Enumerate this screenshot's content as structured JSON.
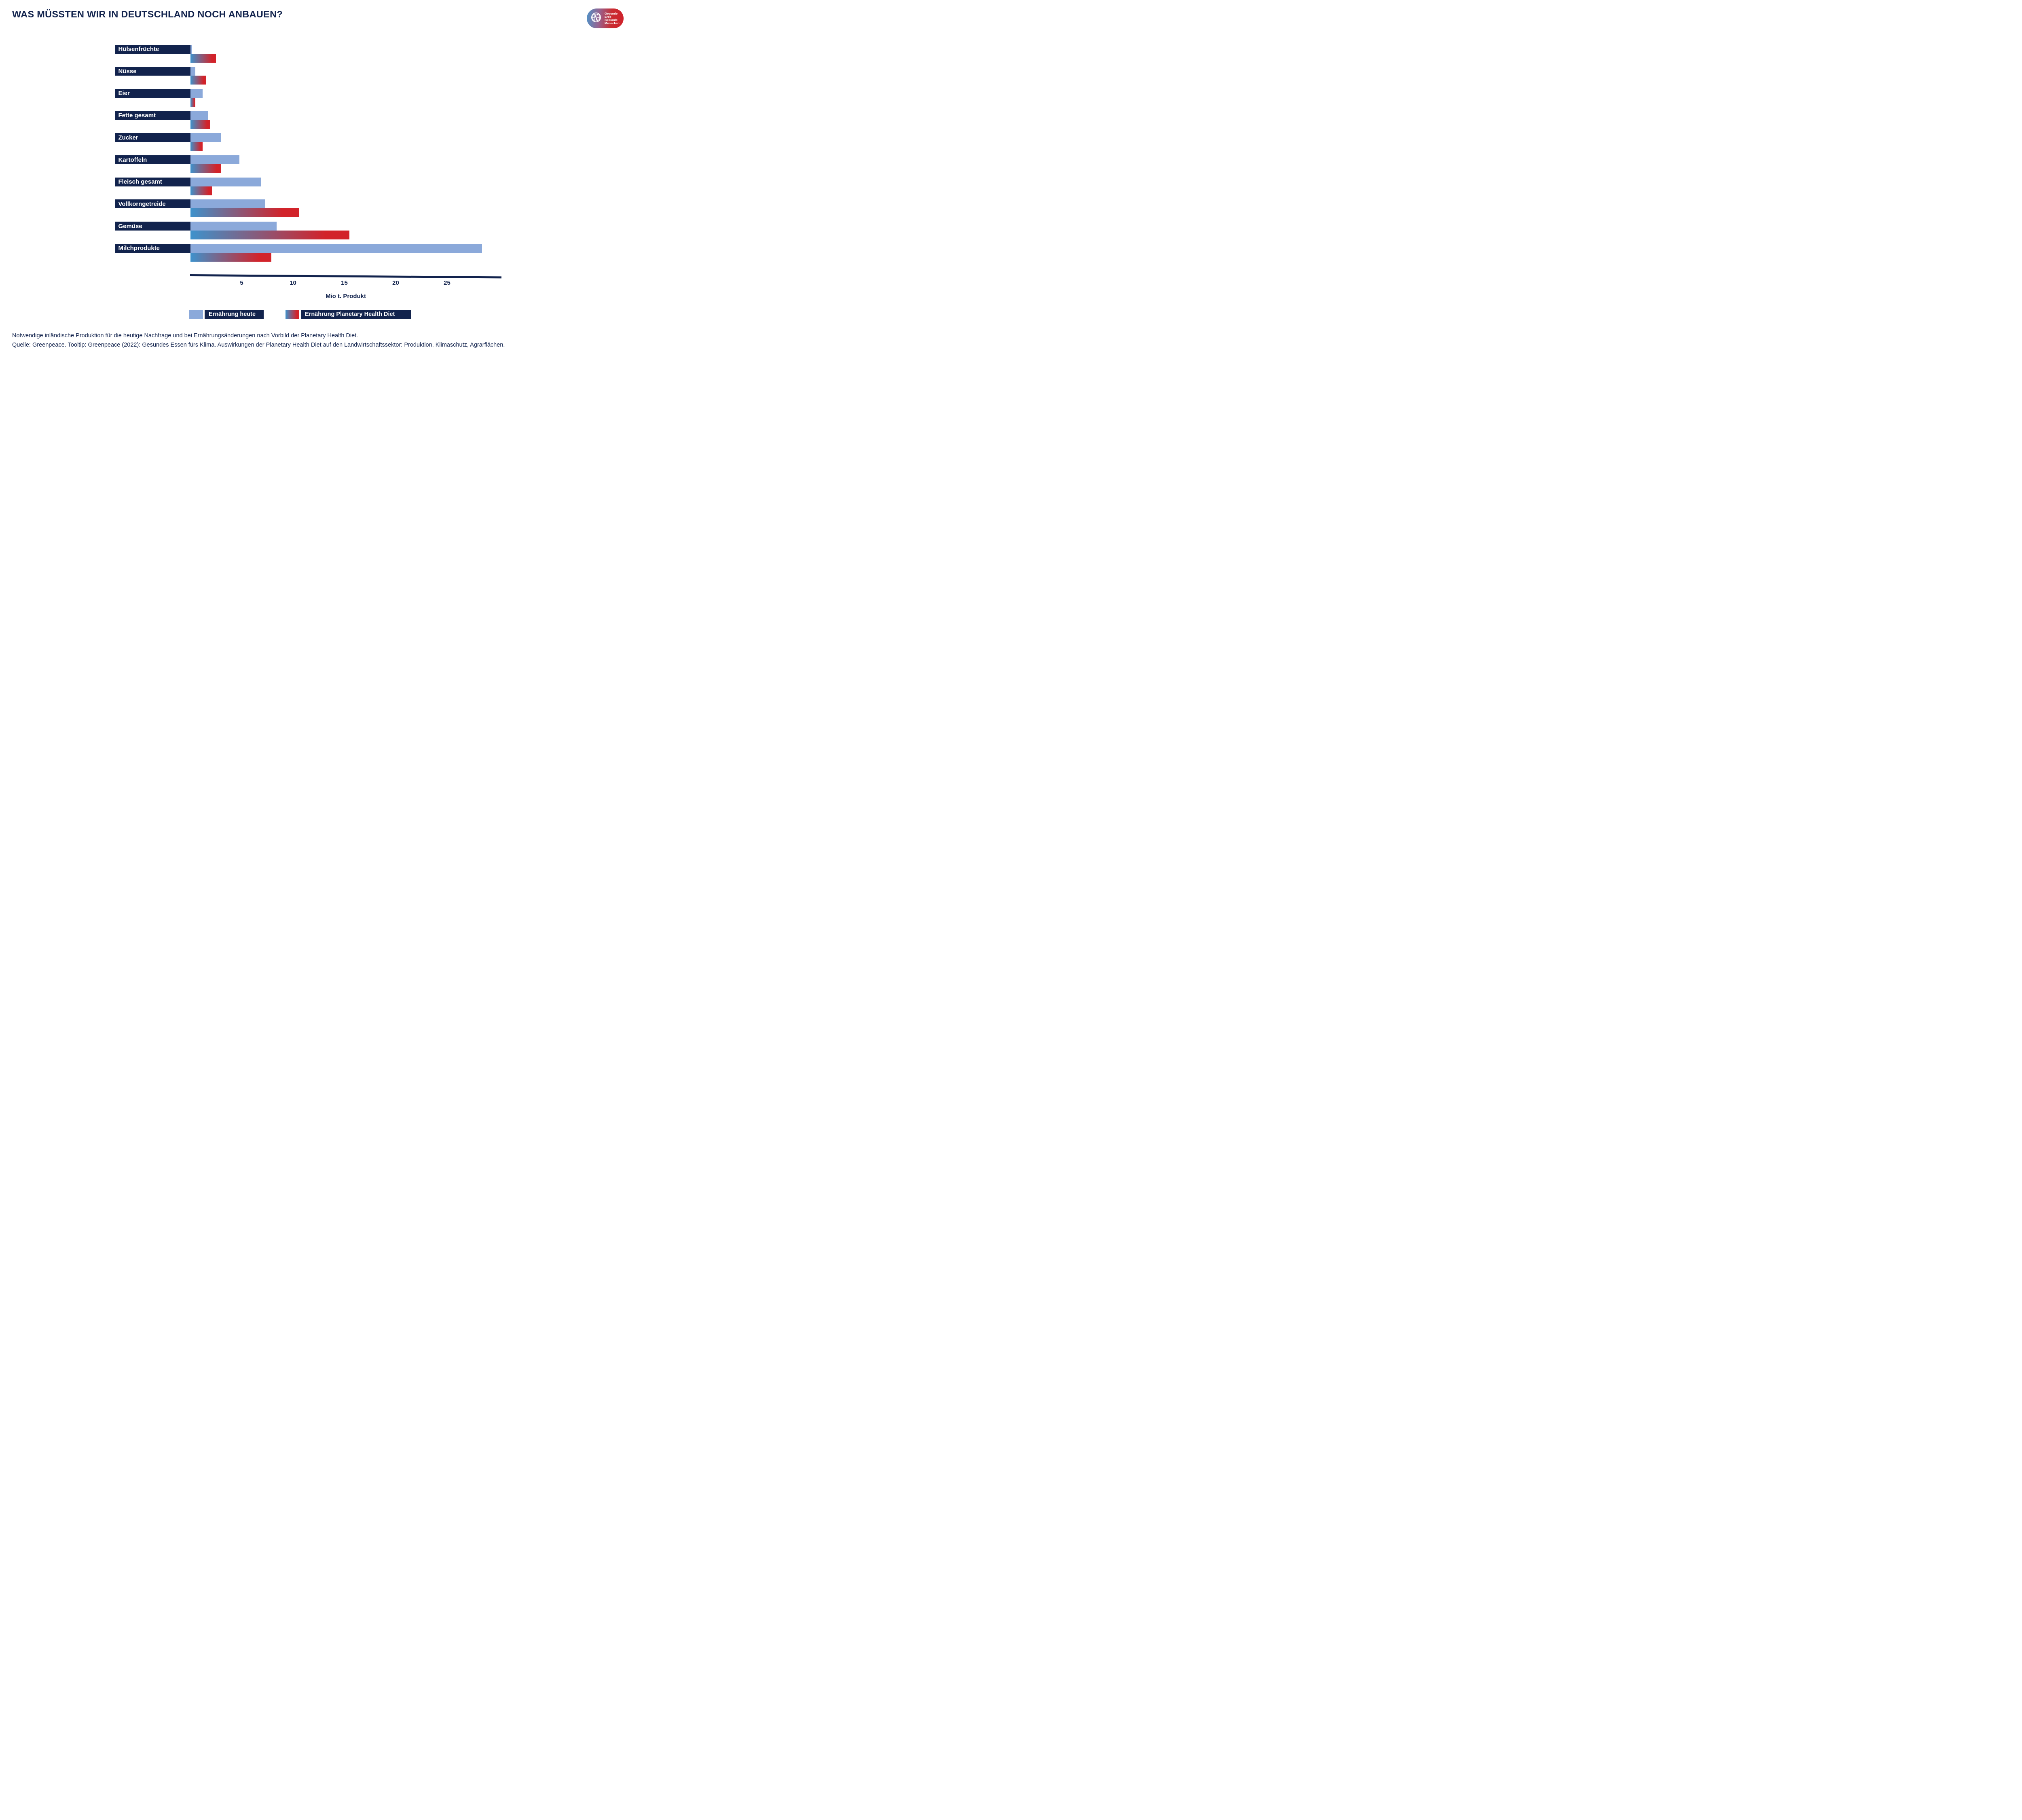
{
  "title": "WAS MÜSSTEN WIR IN DEUTSCHLAND NOCH ANBAUEN?",
  "logo": {
    "name": "Gesunde Erde Gesunde Menschen",
    "lines": [
      "Gesunde",
      "Erde",
      "Gesunde",
      "Menschen"
    ]
  },
  "chart_data": {
    "type": "bar",
    "orientation": "horizontal",
    "categories": [
      "Hülsenfrüchte",
      "Nüsse",
      "Eier",
      "Fette gesamt",
      "Zucker",
      "Kartoffeln",
      "Fleisch gesamt",
      "Vollkorngetreide",
      "Gemüse",
      "Milchprodukte"
    ],
    "series": [
      {
        "name": "Ernährung heute",
        "values": [
          0.15,
          0.5,
          1.2,
          1.75,
          3.0,
          4.8,
          6.9,
          7.3,
          8.4,
          28.4
        ]
      },
      {
        "name": "Ernährung Planetary Health Diet",
        "values": [
          2.5,
          1.5,
          0.5,
          1.9,
          1.2,
          3.0,
          2.1,
          10.6,
          15.5,
          7.9
        ]
      }
    ],
    "xlabel": "Mio t. Produkt",
    "xticks": [
      5,
      10,
      15,
      20,
      25
    ],
    "xlim": [
      0,
      30
    ],
    "grid": false,
    "legend_position": "bottom"
  },
  "legend": {
    "heute": "Ernährung heute",
    "phd": "Ernährung Planetary Health Diet"
  },
  "footnotes": {
    "line1": "Notwendige inländische Produktion für die heutige Nachfrage und bei Ernährungsänderungen nach Vorbild der Planetary Health Diet.",
    "line2": "Quelle: Greenpeace. Tooltip: Greenpeace (2022): Gesundes Essen fürs Klima. Auswirkungen der Planetary Health Diet auf den Landwirtschaftssektor: Produktion, Klimaschutz, Agrarflächen."
  },
  "colors": {
    "navy": "#12234d",
    "light_blue": "#8BA9DA",
    "gradient_blue": "#3E92CC",
    "gradient_red": "#D2232A"
  }
}
